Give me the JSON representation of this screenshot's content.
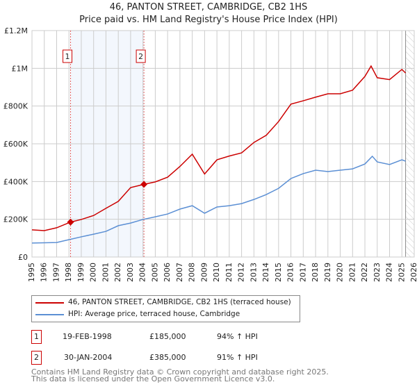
{
  "title": "46, PANTON STREET, CAMBRIDGE, CB2 1HS",
  "subtitle": "Price paid vs. HM Land Registry's House Price Index (HPI)",
  "chart_data": {
    "type": "line",
    "xlim": [
      1995,
      2026
    ],
    "ylim": [
      0,
      1200000
    ],
    "yticks": [
      0,
      200000,
      400000,
      600000,
      800000,
      1000000,
      1200000
    ],
    "ytick_labels": [
      "£0",
      "£200K",
      "£400K",
      "£600K",
      "£800K",
      "£1M",
      "£1.2M"
    ],
    "xticks": [
      "1995",
      "1996",
      "1997",
      "1998",
      "1999",
      "2000",
      "2001",
      "2002",
      "2003",
      "2004",
      "2005",
      "2006",
      "2007",
      "2008",
      "2009",
      "2010",
      "2011",
      "2012",
      "2013",
      "2014",
      "2015",
      "2016",
      "2017",
      "2018",
      "2019",
      "2020",
      "2021",
      "2022",
      "2023",
      "2024",
      "2025",
      "2026"
    ],
    "grid": true,
    "series": [
      {
        "name": "46, PANTON STREET, CAMBRIDGE, CB2 1HS (terraced house)",
        "color": "#cc0000",
        "x": [
          1995,
          1996,
          1997,
          1998.13,
          1999,
          2000,
          2001,
          2002,
          2003,
          2004.08,
          2005,
          2006,
          2007,
          2008,
          2009,
          2010,
          2011,
          2012,
          2013,
          2014,
          2015,
          2016,
          2017,
          2018,
          2019,
          2020,
          2021,
          2022,
          2022.5,
          2023,
          2024,
          2025,
          2025.3
        ],
        "y": [
          144000,
          140000,
          155000,
          185000,
          199000,
          220000,
          258000,
          295000,
          368000,
          385000,
          398000,
          423000,
          480000,
          545000,
          440000,
          515000,
          535000,
          552000,
          607000,
          645000,
          718000,
          810000,
          828000,
          847000,
          865000,
          865000,
          884000,
          957000,
          1012000,
          950000,
          940000,
          994000,
          975000
        ]
      },
      {
        "name": "HPI: Average price, terraced house, Cambridge",
        "color": "#5b8fd4",
        "x": [
          1995,
          1997,
          1998,
          1999,
          2000,
          2001,
          2002,
          2003,
          2004,
          2005,
          2006,
          2007,
          2008,
          2009,
          2010,
          2011,
          2012,
          2013,
          2014,
          2015,
          2016,
          2017,
          2018,
          2019,
          2020,
          2021,
          2022,
          2022.6,
          2023,
          2024,
          2025,
          2025.3
        ],
        "y": [
          74000,
          77000,
          92000,
          107000,
          121000,
          136000,
          166000,
          180000,
          199000,
          213000,
          228000,
          254000,
          272000,
          232000,
          265000,
          272000,
          283000,
          305000,
          331000,
          364000,
          416000,
          442000,
          460000,
          453000,
          460000,
          467000,
          493000,
          534000,
          504000,
          490000,
          515000,
          508000
        ]
      }
    ],
    "sales": [
      {
        "label": "1",
        "x": 1998.13,
        "date": "19-FEB-1998",
        "price": 185000,
        "price_text": "£185,000",
        "hpi_text": "94% ↑ HPI"
      },
      {
        "label": "2",
        "x": 2004.08,
        "date": "30-JAN-2004",
        "price": 385000,
        "price_text": "£385,000",
        "hpi_text": "91% ↑ HPI"
      }
    ],
    "forecast_from": 2025.3
  },
  "footer": [
    "Contains HM Land Registry data © Crown copyright and database right 2025.",
    "This data is licensed under the Open Government Licence v3.0."
  ]
}
